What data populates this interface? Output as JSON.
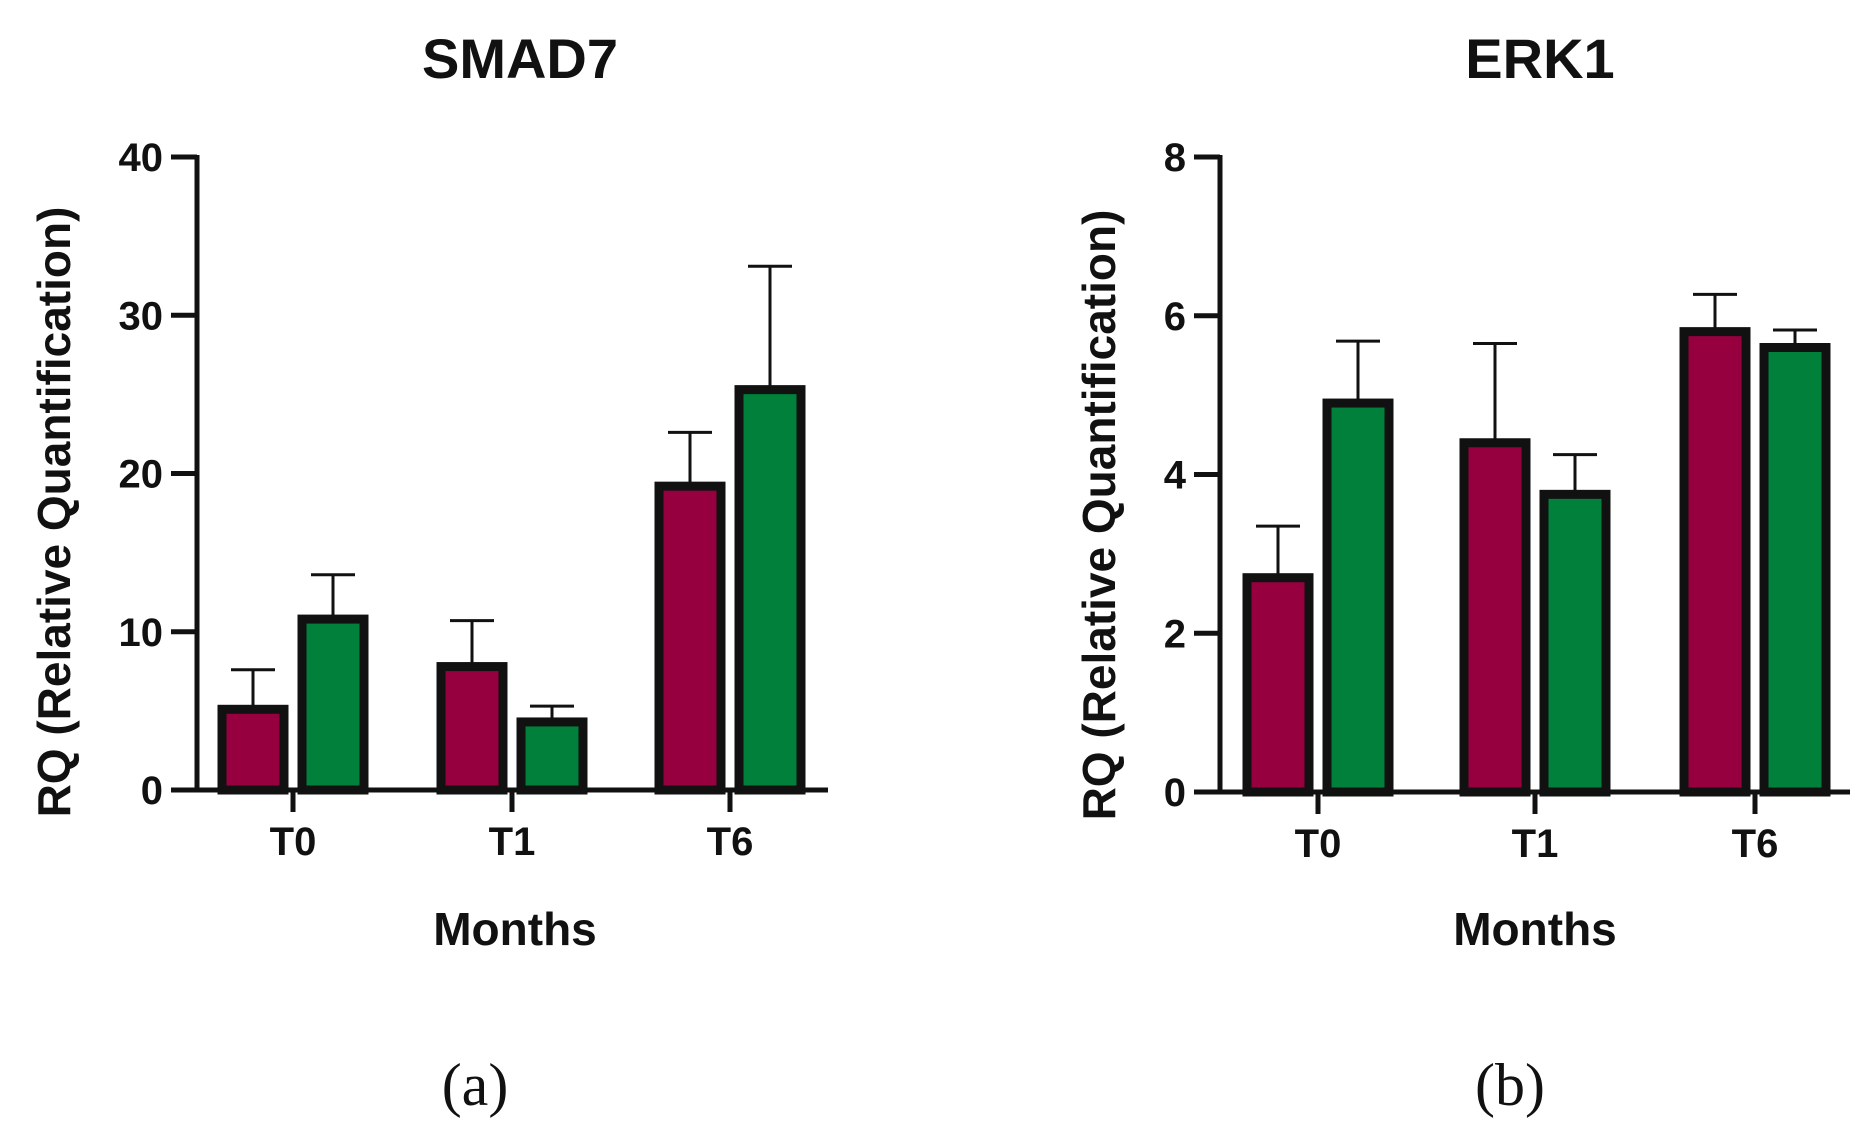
{
  "colors": {
    "series_a": "#96003f",
    "series_b": "#00803a",
    "ink": "#111111"
  },
  "chart_data": [
    {
      "type": "bar",
      "title": "SMAD7",
      "xlabel": "Months",
      "ylabel": "RQ (Relative Quantification)",
      "categories": [
        "T0",
        "T1",
        "T6"
      ],
      "ylim": [
        0,
        40
      ],
      "yticks": [
        "0",
        "10",
        "20",
        "30",
        "40"
      ],
      "series": [
        {
          "name": "series_a",
          "values": [
            5.1,
            7.8,
            19.2
          ],
          "errors": [
            2.5,
            2.9,
            3.4
          ]
        },
        {
          "name": "series_b",
          "values": [
            10.8,
            4.3,
            25.3
          ],
          "errors": [
            2.8,
            1.0,
            7.8
          ]
        }
      ],
      "panel_label": "(a)"
    },
    {
      "type": "bar",
      "title": "ERK1",
      "xlabel": "Months",
      "ylabel": "RQ (Relative Quantification)",
      "categories": [
        "T0",
        "T1",
        "T6"
      ],
      "ylim": [
        0,
        8
      ],
      "yticks": [
        "0",
        "2",
        "4",
        "6",
        "8"
      ],
      "series": [
        {
          "name": "series_a",
          "values": [
            2.7,
            4.4,
            5.8
          ],
          "errors": [
            0.65,
            1.25,
            0.47
          ]
        },
        {
          "name": "series_b",
          "values": [
            4.9,
            3.75,
            5.6
          ],
          "errors": [
            0.78,
            0.5,
            0.22
          ]
        }
      ],
      "panel_label": "(b)"
    }
  ]
}
